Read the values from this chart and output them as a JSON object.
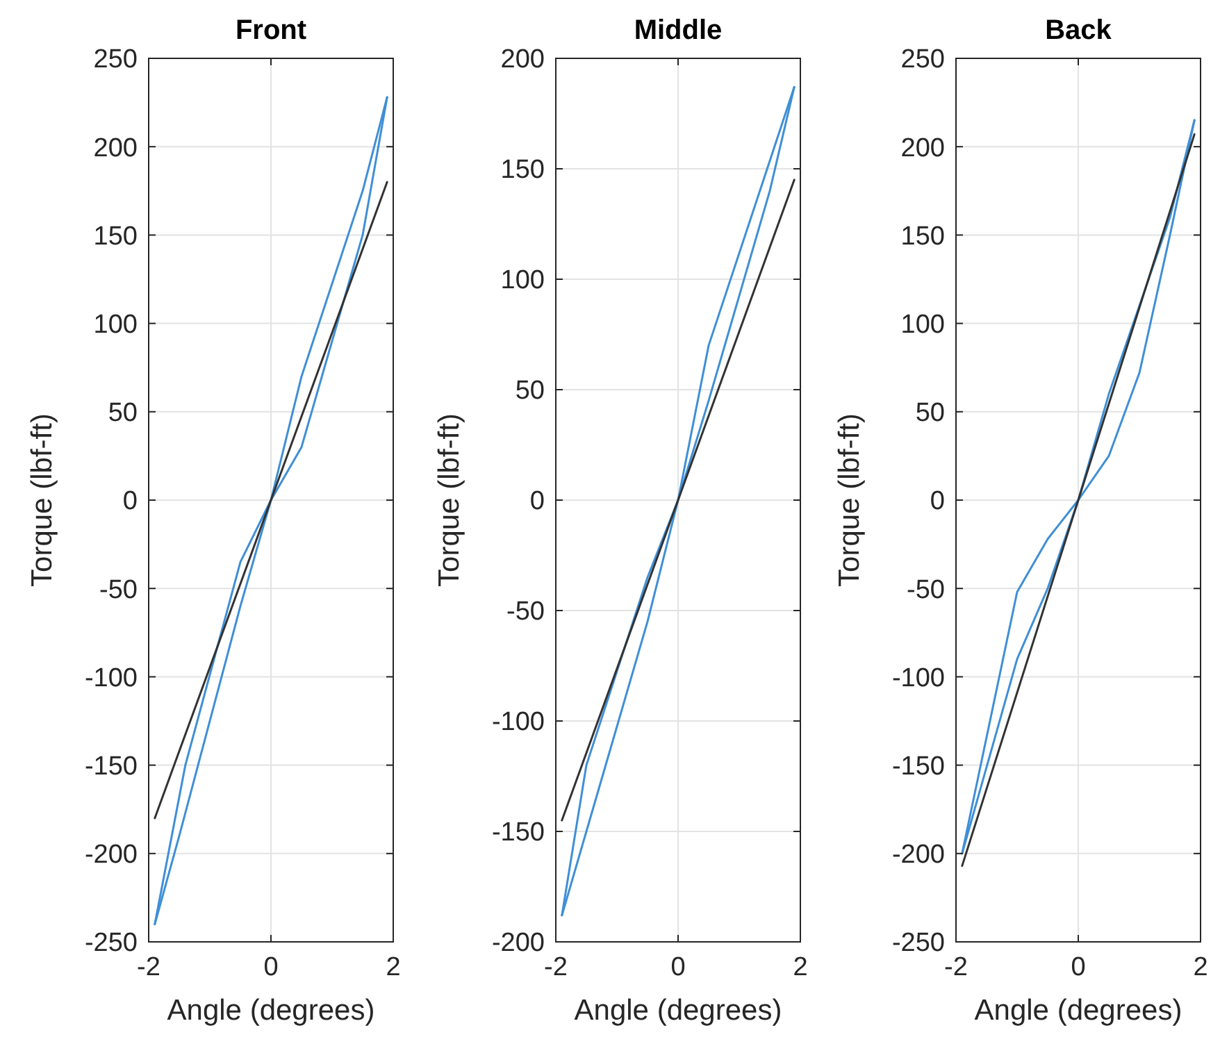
{
  "chart_data": [
    {
      "type": "line",
      "title": "Front",
      "xlabel": "Angle (degrees)",
      "ylabel": "Torque (lbf-ft)",
      "xlim": [
        -2,
        2
      ],
      "xticks": [
        -2,
        0,
        2
      ],
      "ylim": [
        -250,
        250
      ],
      "yticks": [
        -250,
        -200,
        -150,
        -100,
        -50,
        0,
        50,
        100,
        150,
        200,
        250
      ],
      "grid": true,
      "series": [
        {
          "color": "#3f8fd6",
          "x": [
            -1.9,
            -1.4,
            -0.5,
            0,
            0.5,
            1.5,
            1.9
          ],
          "values": [
            -240,
            -150,
            -35,
            0,
            70,
            175,
            228
          ]
        },
        {
          "color": "#3f8fd6",
          "x": [
            -1.9,
            -1.5,
            -0.5,
            0,
            0.5,
            1.5,
            1.9
          ],
          "values": [
            -240,
            -190,
            -60,
            0,
            30,
            150,
            228
          ]
        },
        {
          "color": "#333333",
          "x": [
            -1.9,
            1.9
          ],
          "values": [
            -180,
            180
          ]
        }
      ]
    },
    {
      "type": "line",
      "title": "Middle",
      "xlabel": "Angle (degrees)",
      "ylabel": "Torque (lbf-ft)",
      "xlim": [
        -2,
        2
      ],
      "xticks": [
        -2,
        0,
        2
      ],
      "ylim": [
        -200,
        200
      ],
      "yticks": [
        -200,
        -150,
        -100,
        -50,
        0,
        50,
        100,
        150,
        200
      ],
      "grid": true,
      "series": [
        {
          "color": "#3f8fd6",
          "x": [
            -1.9,
            -1.5,
            -0.5,
            0,
            0.5,
            1.9
          ],
          "values": [
            -188,
            -120,
            -35,
            0,
            70,
            187
          ]
        },
        {
          "color": "#3f8fd6",
          "x": [
            -1.9,
            -1.5,
            -0.5,
            0,
            0.5,
            1.5,
            1.9
          ],
          "values": [
            -188,
            -150,
            -55,
            0,
            45,
            140,
            187
          ]
        },
        {
          "color": "#333333",
          "x": [
            -1.9,
            1.9
          ],
          "values": [
            -145,
            145
          ]
        }
      ]
    },
    {
      "type": "line",
      "title": "Back",
      "xlabel": "Angle (degrees)",
      "ylabel": "Torque (lbf-ft)",
      "xlim": [
        -2,
        2
      ],
      "xticks": [
        -2,
        0,
        2
      ],
      "ylim": [
        -250,
        250
      ],
      "yticks": [
        -250,
        -200,
        -150,
        -100,
        -50,
        0,
        50,
        100,
        150,
        200,
        250
      ],
      "grid": true,
      "series": [
        {
          "color": "#3f8fd6",
          "x": [
            -1.9,
            -1,
            -0.5,
            0,
            0.5,
            1,
            1.5,
            1.9
          ],
          "values": [
            -200,
            -52,
            -22,
            0,
            25,
            72,
            150,
            215
          ]
        },
        {
          "color": "#3f8fd6",
          "x": [
            -1.9,
            -1,
            -0.5,
            0,
            0.5,
            1.5,
            1.9
          ],
          "values": [
            -200,
            -90,
            -50,
            0,
            60,
            160,
            215
          ]
        },
        {
          "color": "#333333",
          "x": [
            -1.9,
            1.9
          ],
          "values": [
            -207,
            207
          ]
        }
      ]
    }
  ]
}
